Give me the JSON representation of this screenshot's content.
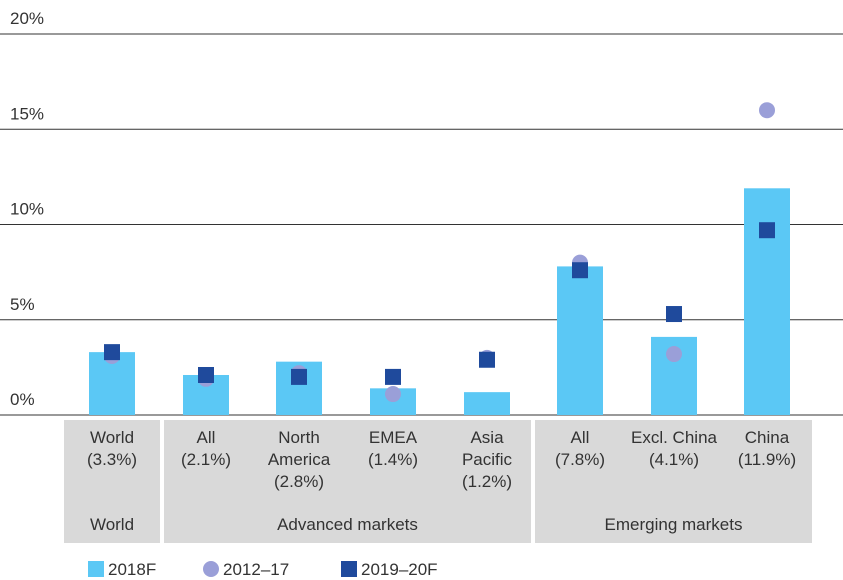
{
  "chart_data": {
    "type": "bar",
    "categories": [
      "World\n(3.3%)",
      "All\n(2.1%)",
      "North\nAmerica\n(2.8%)",
      "EMEA\n(1.4%)",
      "Asia\nPacific\n(1.2%)",
      "All\n(7.8%)",
      "Excl. China\n(4.1%)",
      "China\n(11.9%)"
    ],
    "groups": [
      "World",
      "Advanced markets",
      "Emerging markets"
    ],
    "series": [
      {
        "name": "2018F",
        "color": "#5bc8f5",
        "marker": "bar",
        "values": [
          3.3,
          2.1,
          2.8,
          1.4,
          1.2,
          7.8,
          4.1,
          11.9
        ]
      },
      {
        "name": "2012–17",
        "color": "#9a9fd8",
        "marker": "circle",
        "values": [
          3.1,
          1.9,
          2.2,
          1.1,
          3.0,
          8.0,
          3.2,
          16.0
        ]
      },
      {
        "name": "2019–20F",
        "color": "#1f4a9c",
        "marker": "square",
        "values": [
          3.3,
          2.1,
          2.0,
          2.0,
          2.9,
          7.6,
          5.3,
          9.7
        ]
      }
    ],
    "ylim": [
      0,
      20
    ],
    "yticks": [
      {
        "value": 0,
        "label": "0%"
      },
      {
        "value": 5,
        "label": "5%"
      },
      {
        "value": 10,
        "label": "10%"
      },
      {
        "value": 15,
        "label": "15%"
      },
      {
        "value": 20,
        "label": "20%"
      }
    ],
    "grid": true
  }
}
